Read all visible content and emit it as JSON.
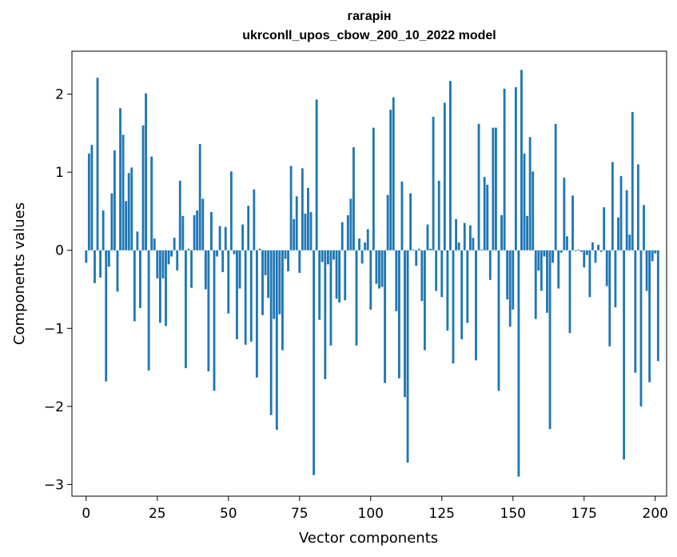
{
  "chart_data": {
    "type": "bar",
    "title_lines": [
      "гагарін",
      "ukrconll_upos_cbow_200_10_2022 model"
    ],
    "xlabel": "Vector components",
    "ylabel": "Components values",
    "xlim": [
      -5,
      204
    ],
    "ylim": [
      -3.15,
      2.55
    ],
    "xticks": [
      0,
      25,
      50,
      75,
      100,
      125,
      150,
      175,
      200
    ],
    "xtick_labels": [
      "0",
      "25",
      "50",
      "75",
      "100",
      "125",
      "150",
      "175",
      "200"
    ],
    "yticks": [
      -3,
      -2,
      -1,
      0,
      1,
      2
    ],
    "ytick_labels": [
      "−3",
      "−2",
      "−1",
      "0",
      "1",
      "2"
    ],
    "grid": false,
    "color": "#1f77b4",
    "values": [
      -0.16,
      1.24,
      1.35,
      -0.42,
      2.21,
      -0.35,
      0.51,
      -1.68,
      -0.21,
      0.73,
      1.28,
      -0.53,
      1.82,
      1.48,
      0.63,
      0.99,
      1.06,
      -0.91,
      0.24,
      -0.74,
      1.6,
      2.01,
      -1.54,
      1.2,
      0.15,
      -0.36,
      -0.93,
      -0.36,
      -0.97,
      -0.18,
      -0.08,
      0.16,
      -0.26,
      0.89,
      0.44,
      -1.51,
      0.02,
      -0.48,
      0.45,
      0.51,
      1.36,
      0.66,
      -0.5,
      -1.55,
      0.49,
      -1.8,
      -0.08,
      0.31,
      -0.28,
      0.3,
      -0.81,
      1.01,
      -0.05,
      -1.14,
      -0.49,
      0.33,
      -1.21,
      0.57,
      -1.17,
      0.78,
      -1.63,
      0.02,
      -0.83,
      -0.32,
      -0.61,
      -2.11,
      -0.88,
      -2.3,
      -0.82,
      -1.28,
      -0.11,
      -0.27,
      1.08,
      0.4,
      0.69,
      -0.29,
      1.05,
      0.47,
      0.8,
      0.49,
      -2.88,
      1.93,
      -0.89,
      -0.15,
      -1.65,
      -0.18,
      -1.22,
      -0.12,
      -0.62,
      -0.67,
      0.36,
      -0.64,
      0.45,
      0.66,
      1.32,
      -1.22,
      0.15,
      -0.17,
      0.1,
      0.27,
      -0.76,
      1.57,
      -0.43,
      -0.49,
      -0.47,
      -1.7,
      0.71,
      1.8,
      1.96,
      -0.78,
      -1.64,
      0.88,
      -1.88,
      -2.72,
      0.73,
      0.01,
      -0.2,
      0.02,
      -0.65,
      -1.28,
      0.33,
      0.02,
      1.71,
      -0.52,
      0.89,
      -0.6,
      1.89,
      -1.03,
      2.17,
      -1.45,
      0.4,
      0.1,
      -1.14,
      0.35,
      -0.93,
      0.32,
      0.16,
      -1.41,
      1.62,
      0.01,
      0.94,
      0.84,
      -0.38,
      1.57,
      1.57,
      -1.8,
      0.45,
      2.07,
      -0.63,
      -0.98,
      -0.76,
      2.09,
      -2.9,
      2.31,
      1.24,
      0.44,
      1.45,
      1.01,
      -0.88,
      -0.26,
      -0.52,
      -0.08,
      -0.8,
      -2.29,
      -0.16,
      1.62,
      -0.49,
      -0.03,
      0.93,
      0.18,
      -1.06,
      0.7,
      -0.01,
      0.01,
      -0.02,
      -0.22,
      -0.06,
      -0.6,
      0.1,
      -0.16,
      0.07,
      -0.02,
      0.55,
      -0.46,
      -1.23,
      1.13,
      -0.73,
      0.42,
      0.95,
      -2.68,
      0.77,
      0.2,
      1.77,
      -1.57,
      1.1,
      -2.0,
      0.58,
      -0.52,
      -1.69,
      -0.14,
      -0.04,
      -1.42
    ]
  }
}
